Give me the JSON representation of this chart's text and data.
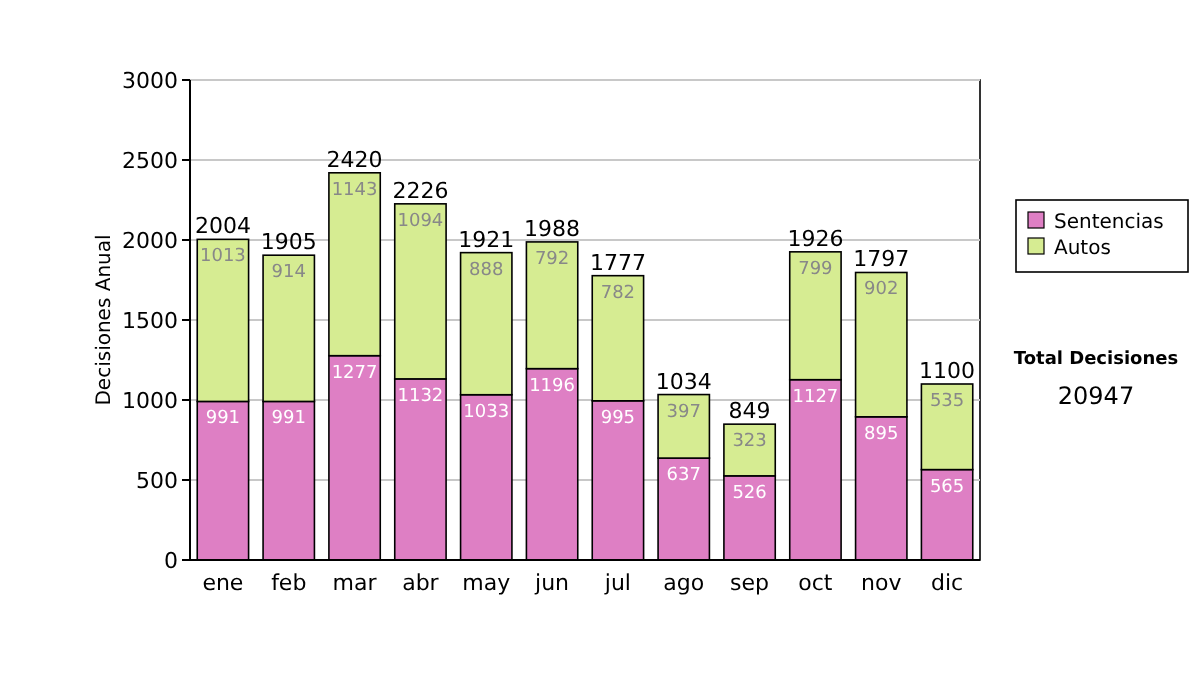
{
  "chart_data": {
    "type": "bar",
    "stacked": true,
    "ylabel": "Decisiones Anual",
    "categories": [
      "ene",
      "feb",
      "mar",
      "abr",
      "may",
      "jun",
      "jul",
      "ago",
      "sep",
      "oct",
      "nov",
      "dic"
    ],
    "series": [
      {
        "name": "Sentencias",
        "color": "#de7fc4",
        "values": [
          991,
          991,
          1277,
          1132,
          1033,
          1196,
          995,
          637,
          526,
          1127,
          895,
          565
        ]
      },
      {
        "name": "Autos",
        "color": "#d6ec92",
        "values": [
          1013,
          914,
          1143,
          1094,
          888,
          792,
          782,
          397,
          323,
          799,
          902,
          535
        ]
      }
    ],
    "totals": [
      "2004",
      "1905",
      "2420",
      "2226",
      "1921",
      "1988",
      "1777",
      "1034",
      "849",
      "1926",
      "1797",
      "1100"
    ],
    "data_labels": true,
    "ylim": [
      0,
      3000
    ],
    "yticks": [
      0,
      500,
      1000,
      1500,
      2000,
      2500,
      3000
    ],
    "grid": "y",
    "legend": "right",
    "annotations": [
      "Total Decisiones",
      "20947"
    ]
  }
}
